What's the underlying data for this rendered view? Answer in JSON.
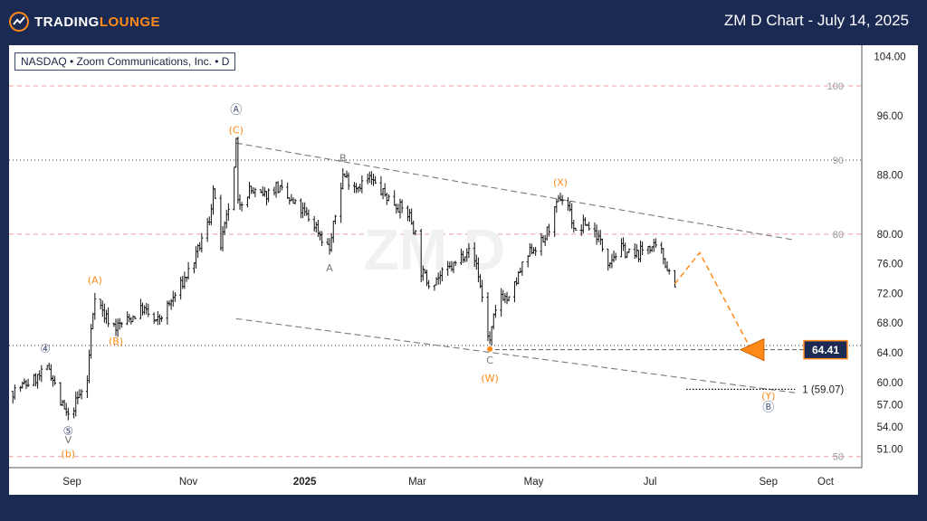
{
  "header": {
    "brand_primary": "TRADING",
    "brand_accent": "LOUNGE",
    "title": "ZM D Chart - July 14, 2025"
  },
  "symbol_label": "NASDAQ • Zoom Communications, Inc. • D",
  "watermark": "ZM D",
  "colors": {
    "background": "#1b2a52",
    "accent": "#ff8a1a",
    "wave_blue": "#4a5680",
    "price_tag": "#1b2a52"
  },
  "chart_data": {
    "type": "candlestick",
    "title": "",
    "xlabel": "",
    "ylabel": "",
    "ylim": [
      48.5,
      105.5
    ],
    "x_ticks": [
      {
        "label": "Sep",
        "x": "2024-09-01"
      },
      {
        "label": "Nov",
        "x": "2024-11-01"
      },
      {
        "label": "2025",
        "x": "2025-01-01",
        "bold": true
      },
      {
        "label": "Mar",
        "x": "2025-03-01"
      },
      {
        "label": "May",
        "x": "2025-05-01"
      },
      {
        "label": "Jul",
        "x": "2025-07-01"
      },
      {
        "label": "Sep",
        "x": "2025-09-01"
      },
      {
        "label": "Oct",
        "x": "2025-10-01"
      }
    ],
    "y_ticks": [
      "104.00",
      "96.00",
      "88.00",
      "80.00",
      "76.00",
      "72.00",
      "68.00",
      "64.00",
      "60.00",
      "57.00",
      "54.00",
      "51.00"
    ],
    "y_tick_values": [
      104,
      96,
      88,
      80,
      76,
      72,
      68,
      64,
      60,
      57,
      54,
      51
    ],
    "grid": false,
    "reference_levels": [
      {
        "label": "100",
        "y": 100,
        "style": "dashed-red"
      },
      {
        "label": "90",
        "y": 90,
        "style": "dotted"
      },
      {
        "label": "80",
        "y": 80,
        "style": "dashed-red"
      },
      {
        "label": "",
        "y": 65,
        "style": "dotted"
      },
      {
        "label": "50",
        "y": 50,
        "style": "dashed-red"
      }
    ],
    "price_path": [
      [
        "2024-08-01",
        58.8
      ],
      [
        "2024-08-08",
        59.8
      ],
      [
        "2024-08-15",
        60.8
      ],
      [
        "2024-08-20",
        62.0
      ],
      [
        "2024-08-26",
        57.2
      ],
      [
        "2024-08-30",
        55.2
      ],
      [
        "2024-09-04",
        57.8
      ],
      [
        "2024-09-09",
        60.2
      ],
      [
        "2024-09-11",
        67.0
      ],
      [
        "2024-09-13",
        72.0
      ],
      [
        "2024-09-18",
        69.0
      ],
      [
        "2024-09-24",
        67.5
      ],
      [
        "2024-10-01",
        68.5
      ],
      [
        "2024-10-08",
        70.0
      ],
      [
        "2024-10-15",
        68.0
      ],
      [
        "2024-10-22",
        70.5
      ],
      [
        "2024-10-29",
        73.5
      ],
      [
        "2024-11-05",
        77.0
      ],
      [
        "2024-11-12",
        82.0
      ],
      [
        "2024-11-14",
        86.0
      ],
      [
        "2024-11-18",
        78.5
      ],
      [
        "2024-11-21",
        82.0
      ],
      [
        "2024-11-25",
        88.5
      ],
      [
        "2024-11-26",
        92.5
      ],
      [
        "2024-11-27",
        84.0
      ],
      [
        "2024-12-03",
        86.0
      ],
      [
        "2024-12-10",
        85.0
      ],
      [
        "2024-12-17",
        86.5
      ],
      [
        "2024-12-24",
        84.5
      ],
      [
        "2024-12-31",
        83.0
      ],
      [
        "2025-01-07",
        81.0
      ],
      [
        "2025-01-10",
        79.5
      ],
      [
        "2025-01-14",
        78.0
      ],
      [
        "2025-01-17",
        82.5
      ],
      [
        "2025-01-21",
        88.0
      ],
      [
        "2025-01-28",
        86.5
      ],
      [
        "2025-02-04",
        87.5
      ],
      [
        "2025-02-11",
        85.5
      ],
      [
        "2025-02-18",
        84.0
      ],
      [
        "2025-02-25",
        82.5
      ],
      [
        "2025-02-28",
        80.0
      ],
      [
        "2025-03-03",
        75.0
      ],
      [
        "2025-03-07",
        73.5
      ],
      [
        "2025-03-14",
        74.5
      ],
      [
        "2025-03-21",
        76.0
      ],
      [
        "2025-03-27",
        78.0
      ],
      [
        "2025-04-01",
        76.0
      ],
      [
        "2025-04-04",
        71.5
      ],
      [
        "2025-04-07",
        66.5
      ],
      [
        "2025-04-08",
        65.5
      ],
      [
        "2025-04-10",
        68.5
      ],
      [
        "2025-04-14",
        72.0
      ],
      [
        "2025-04-18",
        71.0
      ],
      [
        "2025-04-24",
        75.0
      ],
      [
        "2025-04-30",
        78.0
      ],
      [
        "2025-05-06",
        79.0
      ],
      [
        "2025-05-12",
        83.0
      ],
      [
        "2025-05-15",
        85.0
      ],
      [
        "2025-05-19",
        84.0
      ],
      [
        "2025-05-23",
        80.0
      ],
      [
        "2025-05-28",
        81.5
      ],
      [
        "2025-06-03",
        80.0
      ],
      [
        "2025-06-09",
        76.5
      ],
      [
        "2025-06-16",
        78.0
      ],
      [
        "2025-06-23",
        77.0
      ],
      [
        "2025-06-30",
        78.5
      ],
      [
        "2025-07-07",
        77.5
      ],
      [
        "2025-07-10",
        75.5
      ],
      [
        "2025-07-14",
        73.5
      ]
    ],
    "trend_lines": [
      {
        "from": [
          "2024-11-26",
          92.3
        ],
        "to": [
          "2025-09-15",
          79.2
        ],
        "style": "dashed-gray"
      },
      {
        "from": [
          "2024-11-26",
          68.6
        ],
        "to": [
          "2025-09-15",
          58.6
        ],
        "style": "dashed-gray"
      }
    ],
    "horizontal_lines": [
      {
        "from": "2025-04-07",
        "to": "2025-09-28",
        "y": 64.41,
        "style": "dashed-dark"
      },
      {
        "from": "2025-07-20",
        "to": "2025-09-15",
        "y": 59.07,
        "style": "dotted-black",
        "label": "1 (59.07)"
      }
    ],
    "projection": [
      [
        "2025-07-14",
        73.3
      ],
      [
        "2025-07-27",
        77.5
      ],
      [
        "2025-08-22",
        64.9
      ]
    ],
    "target_marker": {
      "x": "2025-08-24",
      "y": 64.41
    },
    "price_tag": {
      "label": "64.41",
      "y": 64.41
    },
    "wave_labels": [
      {
        "text": "④",
        "x": "2024-08-18",
        "y": 64.5,
        "color": "blue"
      },
      {
        "text": "⑤",
        "x": "2024-08-30",
        "y": 53.4,
        "color": "blue"
      },
      {
        "text": "V",
        "x": "2024-08-30",
        "y": 52.3,
        "color": "gray"
      },
      {
        "text": "(b)",
        "x": "2024-08-30",
        "y": 50.4,
        "color": "orange"
      },
      {
        "text": "(A)",
        "x": "2024-09-13",
        "y": 73.8,
        "color": "orange"
      },
      {
        "text": "(B)",
        "x": "2024-09-24",
        "y": 65.6,
        "color": "orange"
      },
      {
        "text": "Ⓐ",
        "x": "2024-11-26",
        "y": 96.8,
        "color": "blue"
      },
      {
        "text": "(C)",
        "x": "2024-11-26",
        "y": 94.1,
        "color": "orange"
      },
      {
        "text": "B",
        "x": "2025-01-21",
        "y": 90.3,
        "color": "gray"
      },
      {
        "text": "A",
        "x": "2025-01-14",
        "y": 75.5,
        "color": "gray"
      },
      {
        "text": "C",
        "x": "2025-04-08",
        "y": 63.0,
        "color": "gray"
      },
      {
        "text": "(W)",
        "x": "2025-04-08",
        "y": 60.6,
        "color": "orange"
      },
      {
        "text": "(X)",
        "x": "2025-05-15",
        "y": 87.0,
        "color": "orange"
      },
      {
        "text": "(Y)",
        "x": "2025-09-01",
        "y": 58.2,
        "color": "orange"
      },
      {
        "text": "Ⓑ",
        "x": "2025-09-01",
        "y": 56.6,
        "color": "blue"
      }
    ]
  }
}
